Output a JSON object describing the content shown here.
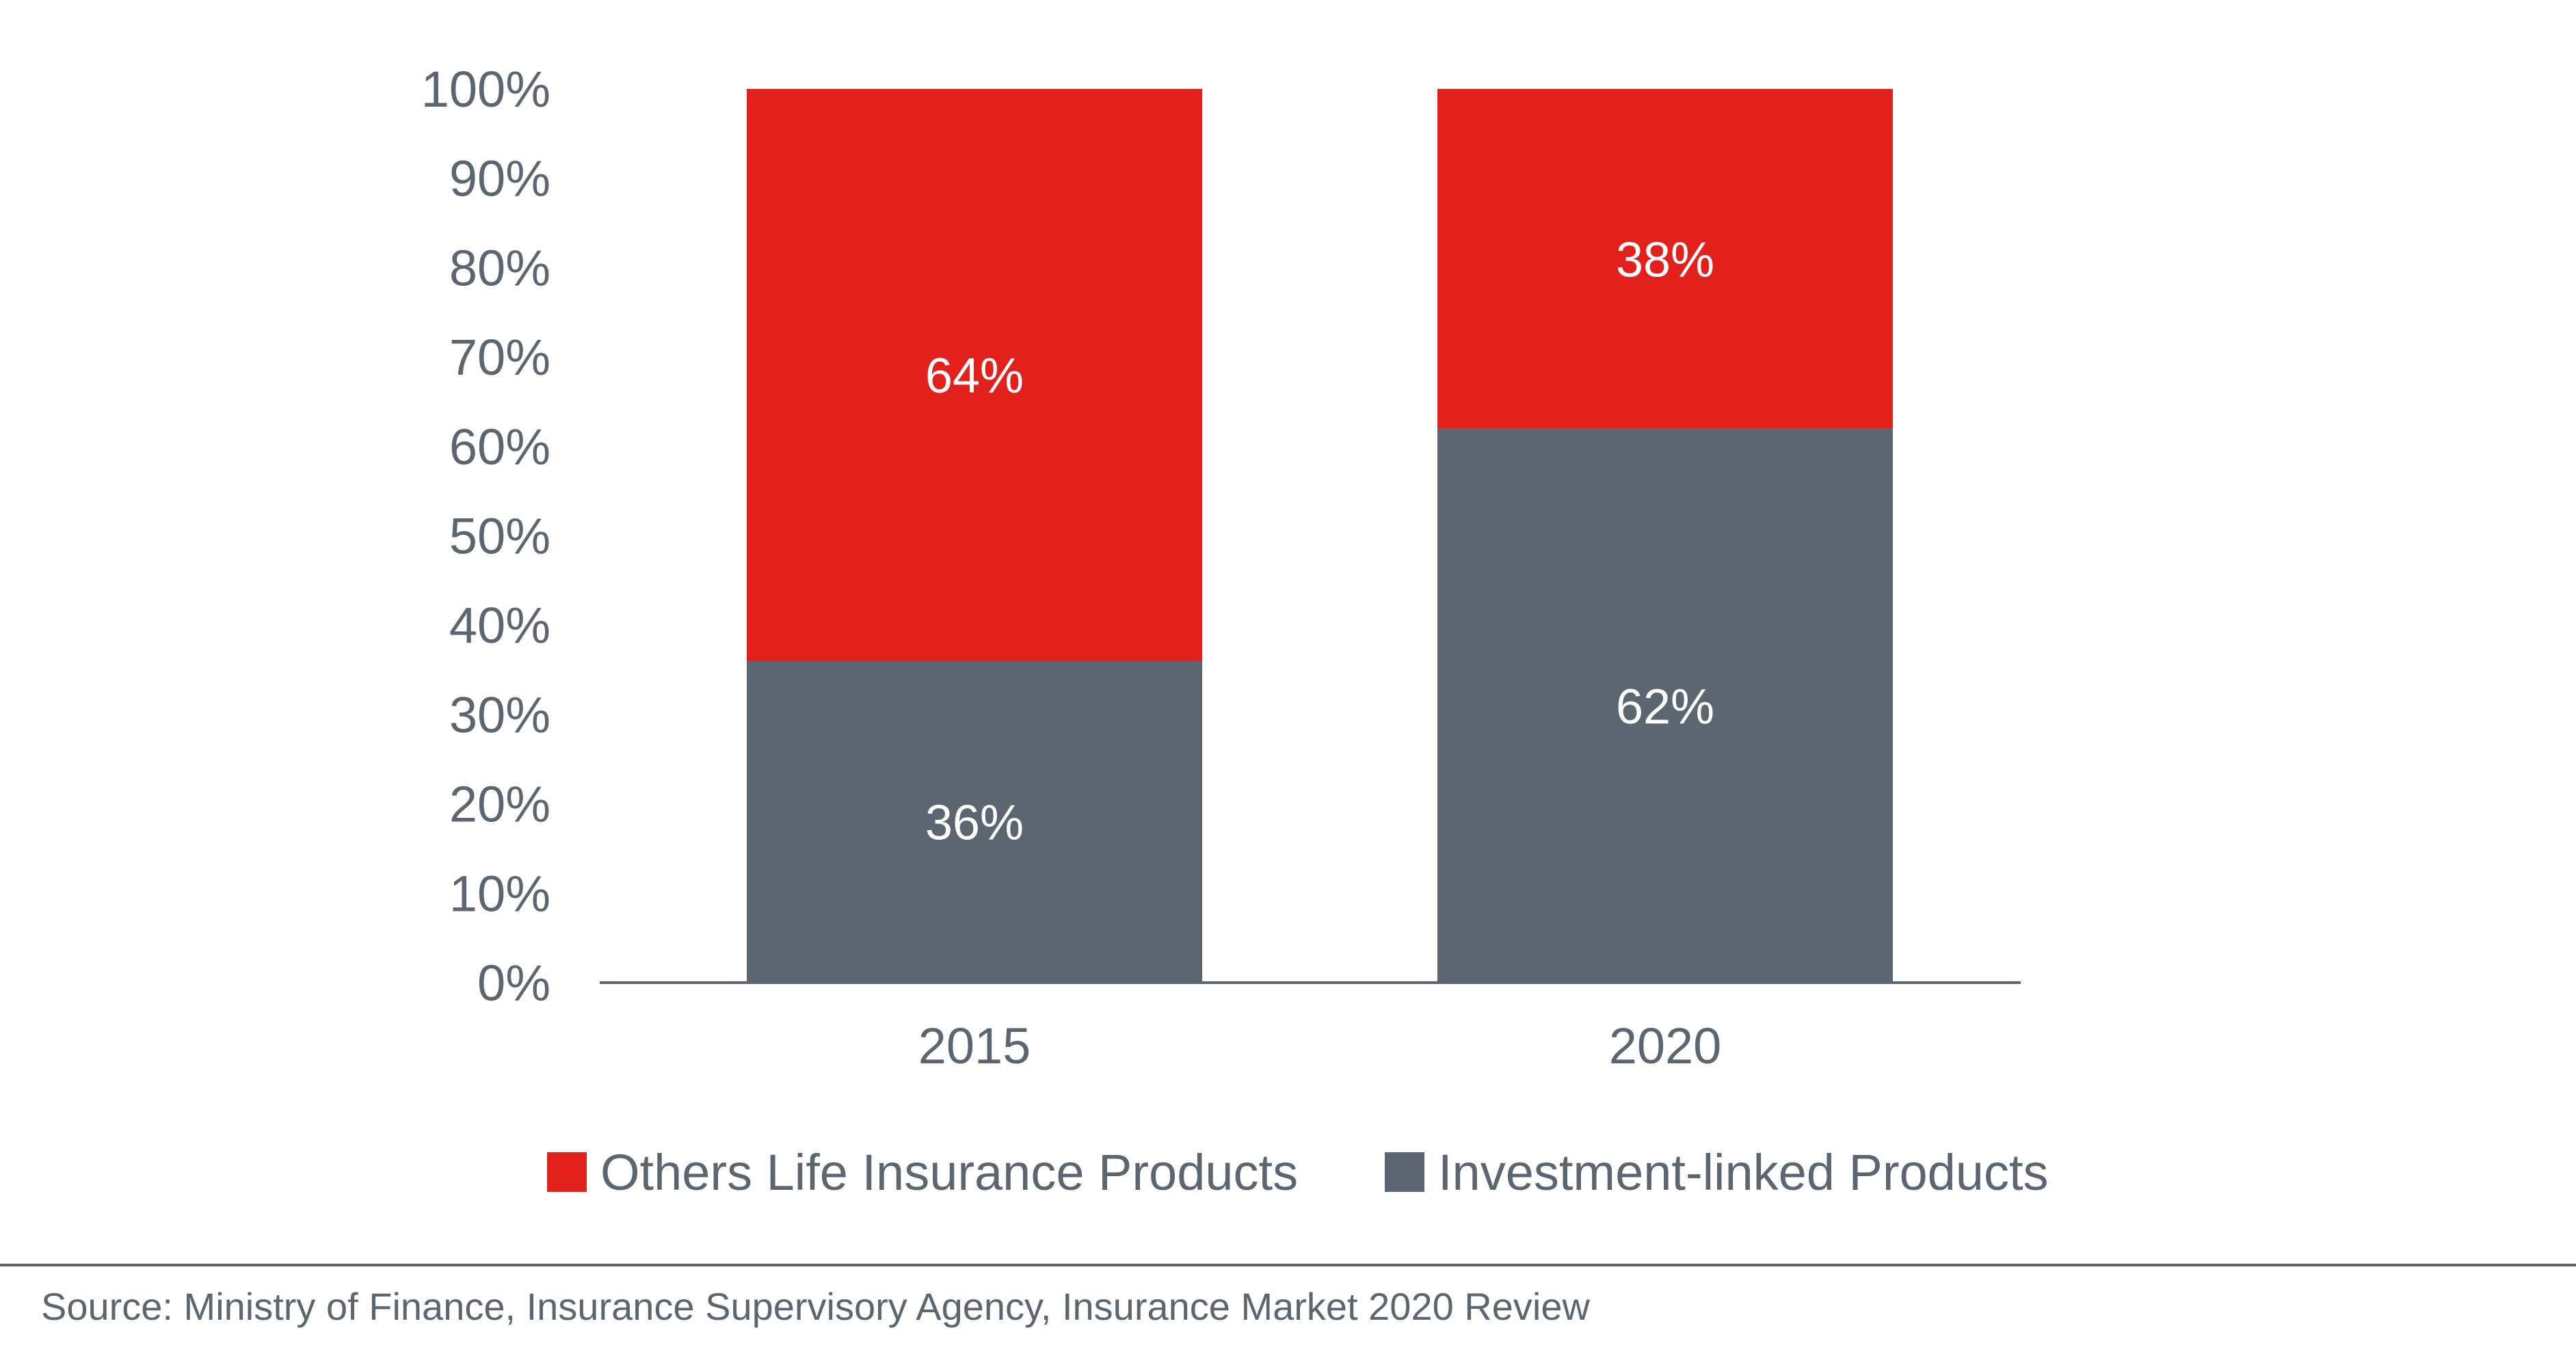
{
  "chart_data": {
    "type": "bar",
    "stacked": true,
    "categories": [
      "2015",
      "2020"
    ],
    "series": [
      {
        "name": "Investment-linked Products",
        "values": [
          36,
          62
        ],
        "labels": [
          "36%",
          "62%"
        ],
        "color": "#5b6670"
      },
      {
        "name": "Others Life Insurance Products",
        "values": [
          64,
          38
        ],
        "labels": [
          "64%",
          "38%"
        ],
        "color": "#e2201c"
      }
    ],
    "y_ticks": [
      "0%",
      "10%",
      "20%",
      "30%",
      "40%",
      "50%",
      "60%",
      "70%",
      "80%",
      "90%",
      "100%"
    ],
    "ylim": [
      0,
      100
    ],
    "legend": [
      {
        "name": "Others Life Insurance Products",
        "color": "#e2201c"
      },
      {
        "name": "Investment-linked Products",
        "color": "#5b6670"
      }
    ],
    "legend_position": "bottom",
    "grid": false
  },
  "source": "Source: Ministry of Finance, Insurance Supervisory Agency, Insurance Market 2020 Review"
}
